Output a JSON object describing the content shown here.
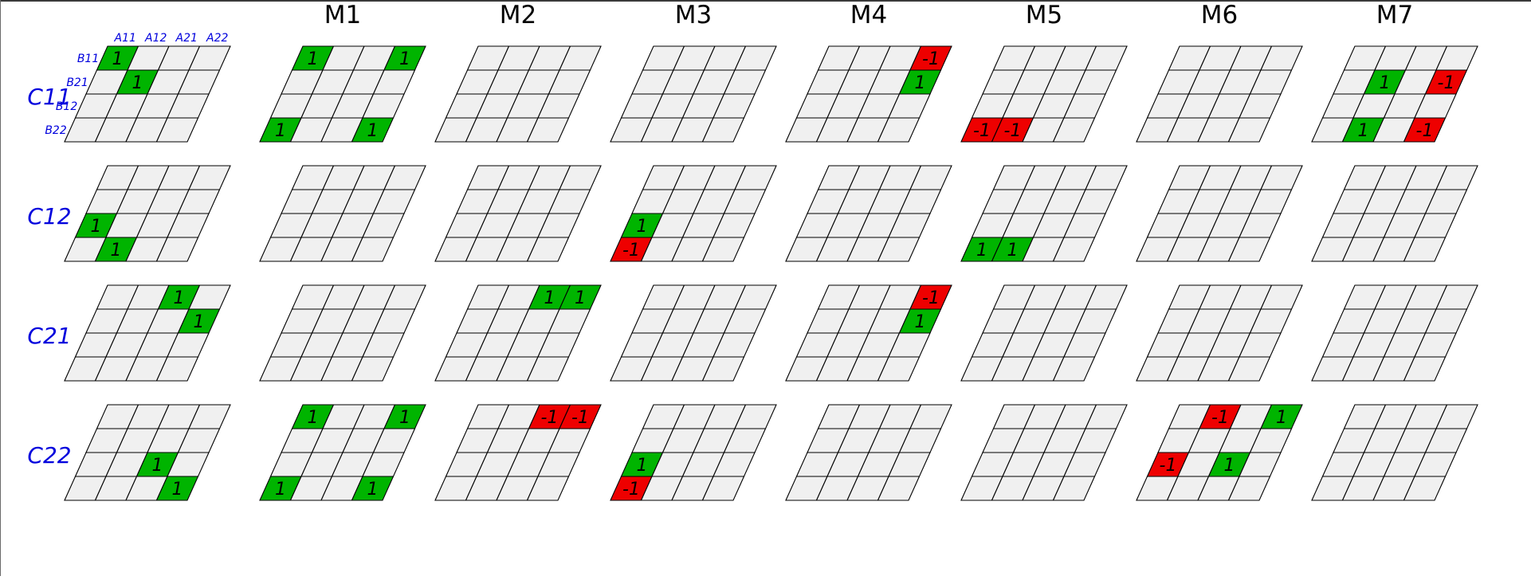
{
  "columns": [
    "M1",
    "M2",
    "M3",
    "M4",
    "M5",
    "M6",
    "M7"
  ],
  "rows": [
    "C11",
    "C12",
    "C21",
    "C22"
  ],
  "a_labels": [
    "A11",
    "A12",
    "A21",
    "A22"
  ],
  "b_labels": [
    "B11",
    "B21",
    "B12",
    "B22"
  ],
  "colors": {
    "positive": "#00b400",
    "negative": "#ee0000",
    "empty": "#f0f0f0",
    "grid_line": "#000000",
    "label_blue": "#0000dd"
  },
  "grids": [
    {
      "row": "C11",
      "col": "ref",
      "cells": [
        [
          0,
          0,
          1
        ],
        [
          1,
          1,
          1
        ]
      ]
    },
    {
      "row": "C11",
      "col": "M1",
      "cells": [
        [
          0,
          0,
          1
        ],
        [
          0,
          3,
          1
        ],
        [
          3,
          0,
          1
        ],
        [
          3,
          3,
          1
        ]
      ]
    },
    {
      "row": "C11",
      "col": "M2",
      "cells": []
    },
    {
      "row": "C11",
      "col": "M3",
      "cells": []
    },
    {
      "row": "C11",
      "col": "M4",
      "cells": [
        [
          0,
          3,
          -1
        ],
        [
          1,
          3,
          1
        ]
      ]
    },
    {
      "row": "C11",
      "col": "M5",
      "cells": [
        [
          3,
          0,
          -1
        ],
        [
          3,
          1,
          -1
        ]
      ]
    },
    {
      "row": "C11",
      "col": "M6",
      "cells": []
    },
    {
      "row": "C11",
      "col": "M7",
      "cells": [
        [
          1,
          1,
          1
        ],
        [
          1,
          3,
          -1
        ],
        [
          3,
          1,
          1
        ],
        [
          3,
          3,
          -1
        ]
      ]
    },
    {
      "row": "C12",
      "col": "ref",
      "cells": [
        [
          2,
          0,
          1
        ],
        [
          3,
          1,
          1
        ]
      ]
    },
    {
      "row": "C12",
      "col": "M1",
      "cells": []
    },
    {
      "row": "C12",
      "col": "M2",
      "cells": []
    },
    {
      "row": "C12",
      "col": "M3",
      "cells": [
        [
          2,
          0,
          1
        ],
        [
          3,
          0,
          -1
        ]
      ]
    },
    {
      "row": "C12",
      "col": "M4",
      "cells": []
    },
    {
      "row": "C12",
      "col": "M5",
      "cells": [
        [
          3,
          0,
          1
        ],
        [
          3,
          1,
          1
        ]
      ]
    },
    {
      "row": "C12",
      "col": "M6",
      "cells": []
    },
    {
      "row": "C12",
      "col": "M7",
      "cells": []
    },
    {
      "row": "C21",
      "col": "ref",
      "cells": [
        [
          0,
          2,
          1
        ],
        [
          1,
          3,
          1
        ]
      ]
    },
    {
      "row": "C21",
      "col": "M1",
      "cells": []
    },
    {
      "row": "C21",
      "col": "M2",
      "cells": [
        [
          0,
          2,
          1
        ],
        [
          0,
          3,
          1
        ]
      ]
    },
    {
      "row": "C21",
      "col": "M3",
      "cells": []
    },
    {
      "row": "C21",
      "col": "M4",
      "cells": [
        [
          0,
          3,
          -1
        ],
        [
          1,
          3,
          1
        ]
      ]
    },
    {
      "row": "C21",
      "col": "M5",
      "cells": []
    },
    {
      "row": "C21",
      "col": "M6",
      "cells": []
    },
    {
      "row": "C21",
      "col": "M7",
      "cells": []
    },
    {
      "row": "C22",
      "col": "ref",
      "cells": [
        [
          2,
          2,
          1
        ],
        [
          3,
          3,
          1
        ]
      ]
    },
    {
      "row": "C22",
      "col": "M1",
      "cells": [
        [
          0,
          0,
          1
        ],
        [
          0,
          3,
          1
        ],
        [
          3,
          0,
          1
        ],
        [
          3,
          3,
          1
        ]
      ]
    },
    {
      "row": "C22",
      "col": "M2",
      "cells": [
        [
          0,
          2,
          -1
        ],
        [
          0,
          3,
          -1
        ]
      ]
    },
    {
      "row": "C22",
      "col": "M3",
      "cells": [
        [
          2,
          0,
          1
        ],
        [
          3,
          0,
          -1
        ]
      ]
    },
    {
      "row": "C22",
      "col": "M4",
      "cells": []
    },
    {
      "row": "C22",
      "col": "M5",
      "cells": []
    },
    {
      "row": "C22",
      "col": "M6",
      "cells": [
        [
          0,
          1,
          -1
        ],
        [
          0,
          3,
          1
        ],
        [
          2,
          0,
          -1
        ],
        [
          2,
          2,
          1
        ]
      ]
    },
    {
      "row": "C22",
      "col": "M7",
      "cells": []
    }
  ]
}
